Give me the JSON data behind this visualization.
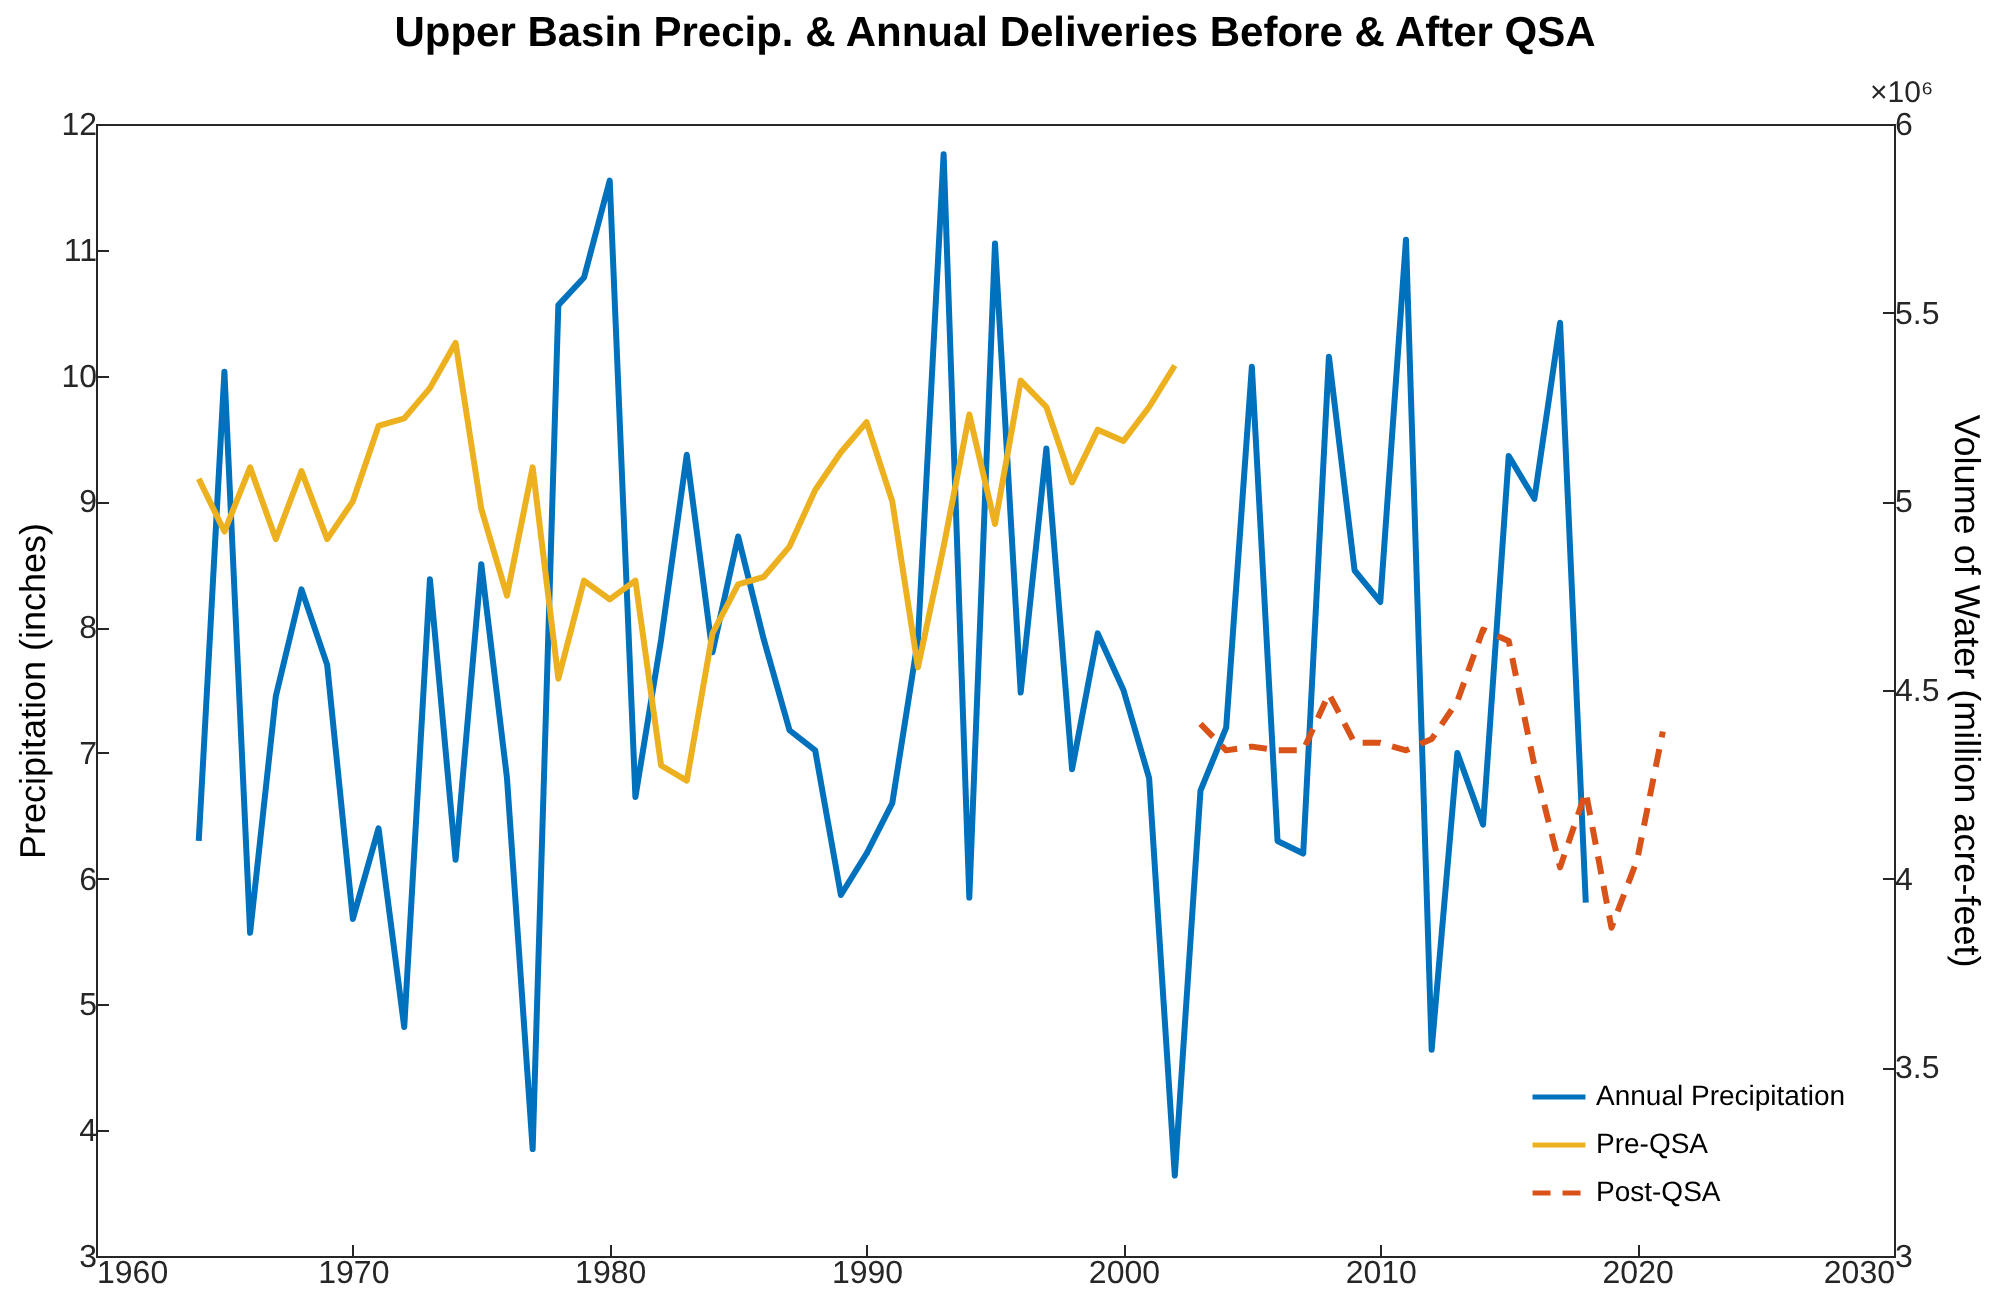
{
  "chart_data": {
    "type": "line",
    "title": "Upper Basin Precip. & Annual Deliveries Before & After QSA",
    "ylabel": "Precipitation (inches)",
    "y2label": "Volume of Water (million acre-feet)",
    "annotations": [
      "×10⁶"
    ],
    "xlim": [
      1960,
      2030
    ],
    "xticks": [
      1960,
      1970,
      1980,
      1990,
      2000,
      2010,
      2020,
      2030
    ],
    "ylim": [
      3,
      12
    ],
    "yticks": [
      3,
      4,
      5,
      6,
      7,
      8,
      9,
      10,
      11,
      12
    ],
    "y2lim": [
      3,
      6
    ],
    "y2ticks": [
      3,
      3.5,
      4,
      4.5,
      5,
      5.5,
      6
    ],
    "legend": "bottom right",
    "series": [
      {
        "name": "Annual Precipitation",
        "color": "#0072bd",
        "line_style": "solid",
        "x": [
          1964,
          1965,
          1966,
          1967,
          1968,
          1969,
          1970,
          1971,
          1972,
          1973,
          1974,
          1975,
          1976,
          1977,
          1978,
          1979,
          1980,
          1981,
          1982,
          1983,
          1984,
          1985,
          1986,
          1987,
          1988,
          1989,
          1990,
          1991,
          1992,
          1993,
          1994,
          1995,
          1996,
          1997,
          1998,
          1999,
          2000,
          2001,
          2002,
          2003,
          2004,
          2005,
          2006,
          2007,
          2008,
          2009,
          2010,
          2011,
          2012,
          2013,
          2014,
          2015,
          2016,
          2017,
          2018
        ],
        "values": [
          6.3,
          10.03,
          5.57,
          7.45,
          8.3,
          7.7,
          5.68,
          6.4,
          4.82,
          8.38,
          6.15,
          8.5,
          6.8,
          3.85,
          10.56,
          10.78,
          11.55,
          6.65,
          7.9,
          9.37,
          7.8,
          8.72,
          7.9,
          7.18,
          7.02,
          5.87,
          6.2,
          6.6,
          7.9,
          11.76,
          5.85,
          11.05,
          7.48,
          9.42,
          6.87,
          7.95,
          7.5,
          6.8,
          3.64,
          6.7,
          7.2,
          10.07,
          6.3,
          6.2,
          10.15,
          8.45,
          8.2,
          11.08,
          4.64,
          7.0,
          6.43,
          9.36,
          9.02,
          10.42,
          5.81
        ]
      },
      {
        "name": "Pre-QSA",
        "color": "#edb120",
        "line_style": "solid",
        "axis": "y2",
        "x": [
          1964,
          1965,
          1966,
          1967,
          1968,
          1969,
          1970,
          1971,
          1972,
          1973,
          1974,
          1975,
          1976,
          1977,
          1978,
          1979,
          1980,
          1981,
          1982,
          1983,
          1984,
          1985,
          1986,
          1987,
          1988,
          1989,
          1990,
          1991,
          1992,
          1993,
          1994,
          1995,
          1996,
          1997,
          1998,
          1999,
          2000,
          2001,
          2002
        ],
        "values": [
          5.06,
          4.92,
          5.09,
          4.9,
          5.08,
          4.9,
          5.0,
          5.2,
          5.22,
          5.3,
          5.42,
          4.98,
          4.75,
          5.09,
          4.53,
          4.79,
          4.74,
          4.79,
          4.3,
          4.26,
          4.65,
          4.78,
          4.8,
          4.88,
          5.03,
          5.13,
          5.21,
          5.0,
          4.56,
          4.88,
          5.23,
          4.94,
          5.32,
          5.25,
          5.05,
          5.19,
          5.16,
          5.25,
          5.36
        ]
      },
      {
        "name": "Post-QSA",
        "color": "#d95319",
        "line_style": "dashed",
        "axis": "y2",
        "x": [
          2003,
          2004,
          2005,
          2006,
          2007,
          2008,
          2009,
          2010,
          2011,
          2012,
          2013,
          2014,
          2015,
          2016,
          2017,
          2018,
          2019,
          2020,
          2021
        ],
        "values": [
          4.41,
          4.34,
          4.35,
          4.34,
          4.34,
          4.49,
          4.36,
          4.36,
          4.34,
          4.37,
          4.47,
          4.66,
          4.63,
          4.3,
          4.03,
          4.23,
          3.87,
          4.05,
          4.39
        ]
      }
    ]
  }
}
